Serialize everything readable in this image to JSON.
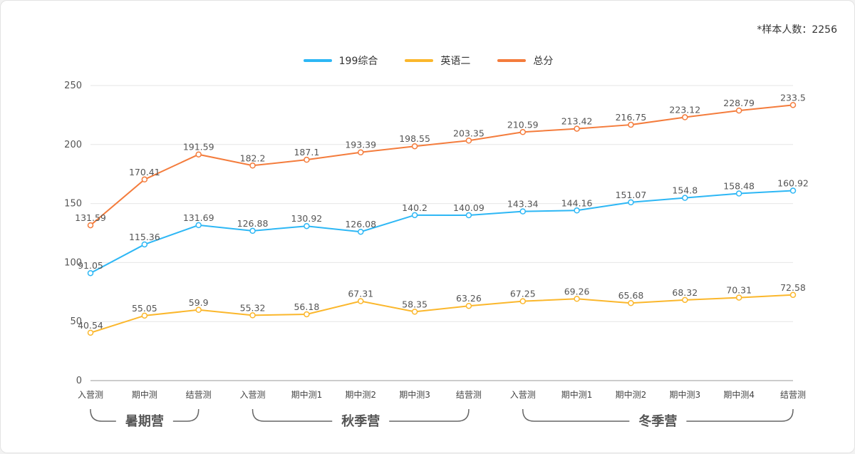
{
  "sample_note": "*样本人数：2256",
  "chart_data": {
    "type": "line",
    "categories": [
      "入营测",
      "期中测",
      "结营测",
      "入营测",
      "期中测1",
      "期中测2",
      "期中测3",
      "结营测",
      "入营测",
      "期中测1",
      "期中测2",
      "期中测3",
      "期中测4",
      "结营测"
    ],
    "groups": [
      {
        "label": "暑期营",
        "from": 0,
        "to": 2
      },
      {
        "label": "秋季营",
        "from": 3,
        "to": 7
      },
      {
        "label": "冬季营",
        "from": 8,
        "to": 13
      }
    ],
    "series": [
      {
        "name": "199综合",
        "color": "#2db7f5",
        "values": [
          91.05,
          115.36,
          131.69,
          126.88,
          130.92,
          126.08,
          140.2,
          140.09,
          143.34,
          144.16,
          151.07,
          154.8,
          158.48,
          160.92
        ]
      },
      {
        "name": "英语二",
        "color": "#fbb72c",
        "values": [
          40.54,
          55.05,
          59.9,
          55.32,
          56.18,
          67.31,
          58.35,
          63.26,
          67.25,
          69.26,
          65.68,
          68.32,
          70.31,
          72.58
        ]
      },
      {
        "name": "总分",
        "color": "#f47c3c",
        "values": [
          131.59,
          170.41,
          191.59,
          182.2,
          187.1,
          193.39,
          198.55,
          203.35,
          210.59,
          213.42,
          216.75,
          223.12,
          228.79,
          233.5
        ]
      }
    ],
    "ylim": [
      0,
      250
    ],
    "yticks": [
      0,
      50,
      100,
      150,
      200,
      250
    ],
    "grid": true,
    "legend": "top-center",
    "title": "",
    "xlabel": "",
    "ylabel": ""
  }
}
